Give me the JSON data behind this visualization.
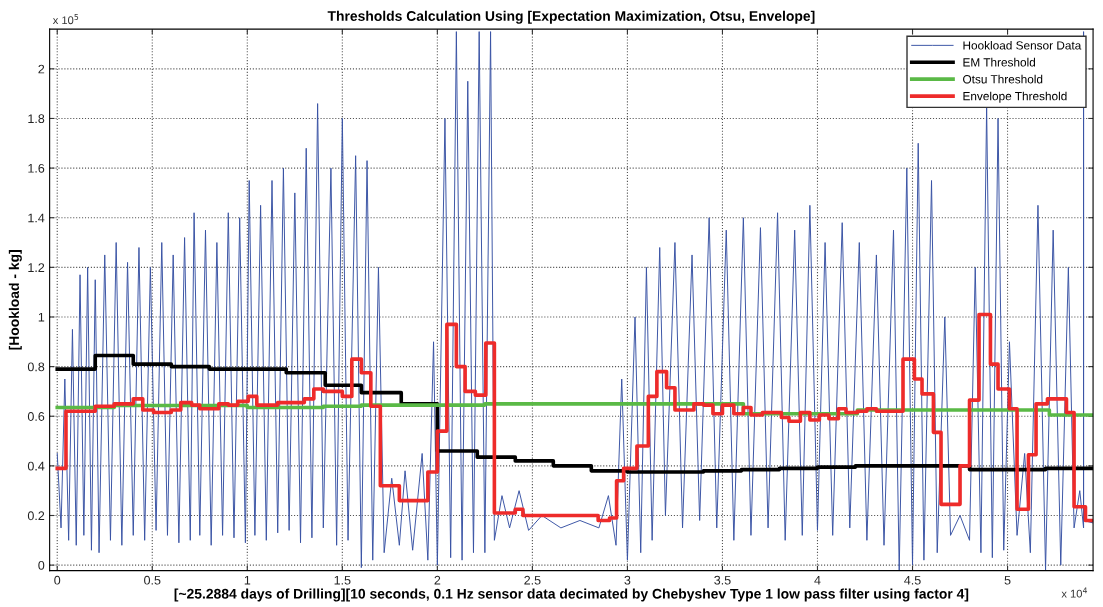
{
  "chart_data": {
    "type": "line",
    "title": "Thresholds Calculation Using [Expectation Maximization, Otsu, Envelope]",
    "xlabel": "[~25.2884 days of Drilling][10 seconds, 0.1 Hz sensor data decimated by Chebyshev Type 1 low pass filter using factor 4]",
    "ylabel": "[Hookload - kg]",
    "annotations": [
      "x 10$^{5}$",
      "x 10$^{4}$"
    ],
    "xlim": [
      -0.04,
      5.45
    ],
    "ylim": [
      -0.022,
      2.16
    ],
    "xticks": [
      0,
      0.5,
      1,
      1.5,
      2,
      2.5,
      3,
      3.5,
      4,
      4.5,
      5
    ],
    "yticks": [
      0,
      0.2,
      0.4,
      0.6,
      0.8,
      1,
      1.2,
      1.4,
      1.6,
      1.8,
      2
    ],
    "grid": true,
    "legend": "top right",
    "series": [
      {
        "name": "Hookload Sensor Data",
        "color": "#3953a4",
        "x": [
          0.0,
          0.02,
          0.04,
          0.06,
          0.08,
          0.1,
          0.12,
          0.14,
          0.16,
          0.18,
          0.2,
          0.22,
          0.25,
          0.28,
          0.31,
          0.34,
          0.37,
          0.4,
          0.43,
          0.46,
          0.49,
          0.52,
          0.55,
          0.58,
          0.61,
          0.64,
          0.67,
          0.7,
          0.72,
          0.75,
          0.78,
          0.81,
          0.84,
          0.87,
          0.9,
          0.93,
          0.96,
          0.99,
          1.01,
          1.04,
          1.07,
          1.1,
          1.13,
          1.16,
          1.19,
          1.22,
          1.25,
          1.28,
          1.31,
          1.34,
          1.37,
          1.4,
          1.44,
          1.47,
          1.5,
          1.53,
          1.57,
          1.6,
          1.63,
          1.66,
          1.69,
          1.72,
          1.76,
          1.8,
          1.83,
          1.87,
          1.92,
          1.95,
          1.98,
          2.0,
          2.04,
          2.07,
          2.1,
          2.13,
          2.16,
          2.19,
          2.22,
          2.25,
          2.28,
          2.3,
          2.34,
          2.38,
          2.43,
          2.48,
          2.55,
          2.65,
          2.75,
          2.85,
          2.9,
          2.94,
          2.97,
          3.0,
          3.04,
          3.07,
          3.1,
          3.13,
          3.17,
          3.2,
          3.25,
          3.29,
          3.34,
          3.38,
          3.43,
          3.47,
          3.52,
          3.56,
          3.61,
          3.65,
          3.7,
          3.74,
          3.79,
          3.83,
          3.88,
          3.92,
          3.96,
          4.0,
          4.04,
          4.08,
          4.13,
          4.17,
          4.22,
          4.26,
          4.31,
          4.35,
          4.4,
          4.43,
          4.47,
          4.5,
          4.53,
          4.56,
          4.6,
          4.63,
          4.67,
          4.7,
          4.75,
          4.8,
          4.83,
          4.86,
          4.89,
          4.92,
          4.95,
          4.98,
          5.01,
          5.05,
          5.09,
          5.12,
          5.16,
          5.2,
          5.24,
          5.28,
          5.32,
          5.35,
          5.38,
          5.4,
          5.4,
          5.4,
          5.45
        ],
        "values": [
          0.45,
          0.15,
          0.75,
          0.1,
          0.95,
          0.08,
          1.17,
          0.12,
          1.2,
          0.06,
          1.15,
          0.05,
          1.25,
          0.1,
          1.3,
          0.08,
          1.22,
          0.12,
          1.28,
          0.1,
          1.2,
          0.14,
          1.3,
          0.12,
          1.25,
          0.09,
          1.32,
          0.1,
          1.42,
          0.12,
          1.35,
          0.08,
          1.3,
          0.12,
          1.42,
          0.11,
          1.4,
          0.09,
          1.55,
          0.12,
          1.45,
          0.1,
          1.55,
          0.13,
          1.6,
          0.14,
          1.5,
          0.09,
          1.68,
          0.11,
          1.86,
          0.15,
          1.6,
          0.08,
          1.8,
          0.1,
          1.65,
          -0.01,
          1.63,
          0.02,
          1.2,
          0.05,
          0.35,
          0.08,
          0.38,
          0.06,
          0.45,
          0.02,
          0.9,
          0.0,
          1.8,
          0.03,
          2.15,
          0.02,
          1.95,
          0.05,
          2.15,
          0.05,
          2.15,
          0.1,
          0.28,
          0.15,
          0.3,
          0.14,
          0.2,
          0.15,
          0.18,
          0.15,
          0.28,
          0.08,
          0.75,
          0.02,
          1.0,
          0.05,
          1.2,
          0.1,
          1.28,
          0.2,
          1.3,
          0.15,
          1.25,
          0.18,
          1.4,
          0.15,
          1.35,
          0.1,
          1.4,
          0.12,
          1.36,
          0.15,
          1.42,
          0.1,
          1.35,
          0.12,
          1.45,
          0.14,
          1.3,
          0.12,
          1.38,
          0.15,
          1.3,
          0.1,
          1.25,
          0.08,
          1.35,
          -0.02,
          1.6,
          0.0,
          1.7,
          0.02,
          1.55,
          0.05,
          1.0,
          0.12,
          0.2,
          0.1,
          1.2,
          0.05,
          1.85,
          0.03,
          1.8,
          0.06,
          0.9,
          0.12,
          0.45,
          0.05,
          1.45,
          -0.02,
          1.35,
          0.0,
          1.2,
          0.15,
          0.3,
          0.15,
          2.15,
          0.18,
          0.17
        ]
      },
      {
        "name": "EM Threshold",
        "type": "step",
        "color": "#000000",
        "x": [
          0,
          0.2,
          0.4,
          0.6,
          0.8,
          1.205,
          1.41,
          1.6,
          1.81,
          2.0,
          2.21,
          2.41,
          2.61,
          2.81,
          3.0,
          3.4,
          3.6,
          3.8,
          4.0,
          4.2,
          4.8,
          5.2,
          5.45
        ],
        "values": [
          0.79,
          0.845,
          0.81,
          0.8,
          0.79,
          0.775,
          0.725,
          0.695,
          0.65,
          0.46,
          0.435,
          0.42,
          0.4,
          0.38,
          0.375,
          0.38,
          0.385,
          0.39,
          0.395,
          0.4,
          0.385,
          0.39,
          0.39
        ]
      },
      {
        "name": "Otsu Threshold",
        "type": "step",
        "color": "#5ab946",
        "x": [
          0,
          0.3,
          1.0,
          1.4,
          1.6,
          2.0,
          2.25,
          3.61,
          4.21,
          5.22,
          5.45
        ],
        "values": [
          0.635,
          0.643,
          0.635,
          0.64,
          0.645,
          0.645,
          0.65,
          0.61,
          0.625,
          0.605,
          0.605
        ]
      },
      {
        "name": "Envelope Threshold",
        "type": "step",
        "color": "#ee2b2a",
        "x": [
          0,
          0.046,
          0.2,
          0.3,
          0.4,
          0.45,
          0.507,
          0.6,
          0.65,
          0.707,
          0.75,
          0.85,
          0.9,
          0.95,
          1.005,
          1.05,
          1.16,
          1.3,
          1.35,
          1.4,
          1.5,
          1.55,
          1.6,
          1.65,
          1.7,
          1.8,
          1.95,
          2.0,
          2.05,
          2.1,
          2.146,
          2.2,
          2.255,
          2.3,
          2.41,
          2.45,
          2.846,
          2.906,
          2.943,
          2.98,
          3.05,
          3.11,
          3.155,
          3.206,
          3.25,
          3.35,
          3.4,
          3.45,
          3.5,
          3.56,
          3.61,
          3.65,
          3.71,
          3.81,
          3.85,
          3.91,
          3.96,
          4.01,
          4.06,
          4.11,
          4.15,
          4.21,
          4.26,
          4.31,
          4.45,
          4.51,
          4.55,
          4.61,
          4.65,
          4.75,
          4.8,
          4.85,
          4.91,
          4.95,
          5.01,
          5.05,
          5.11,
          5.15,
          5.21,
          5.31,
          5.35,
          5.41,
          5.45
        ],
        "values": [
          0.39,
          0.62,
          0.64,
          0.65,
          0.67,
          0.625,
          0.615,
          0.625,
          0.655,
          0.645,
          0.63,
          0.65,
          0.645,
          0.66,
          0.68,
          0.645,
          0.655,
          0.67,
          0.71,
          0.7,
          0.68,
          0.83,
          0.775,
          0.64,
          0.32,
          0.26,
          0.375,
          0.54,
          0.97,
          0.8,
          0.7,
          0.685,
          0.895,
          0.21,
          0.225,
          0.2,
          0.18,
          0.19,
          0.34,
          0.39,
          0.48,
          0.68,
          0.78,
          0.715,
          0.625,
          0.65,
          0.645,
          0.61,
          0.645,
          0.61,
          0.635,
          0.605,
          0.615,
          0.595,
          0.58,
          0.615,
          0.585,
          0.605,
          0.59,
          0.63,
          0.615,
          0.62,
          0.63,
          0.62,
          0.83,
          0.75,
          0.69,
          0.535,
          0.245,
          0.4,
          0.665,
          1.01,
          0.81,
          0.71,
          0.63,
          0.225,
          0.445,
          0.65,
          0.67,
          0.615,
          0.235,
          0.18,
          0.18
        ]
      }
    ]
  }
}
